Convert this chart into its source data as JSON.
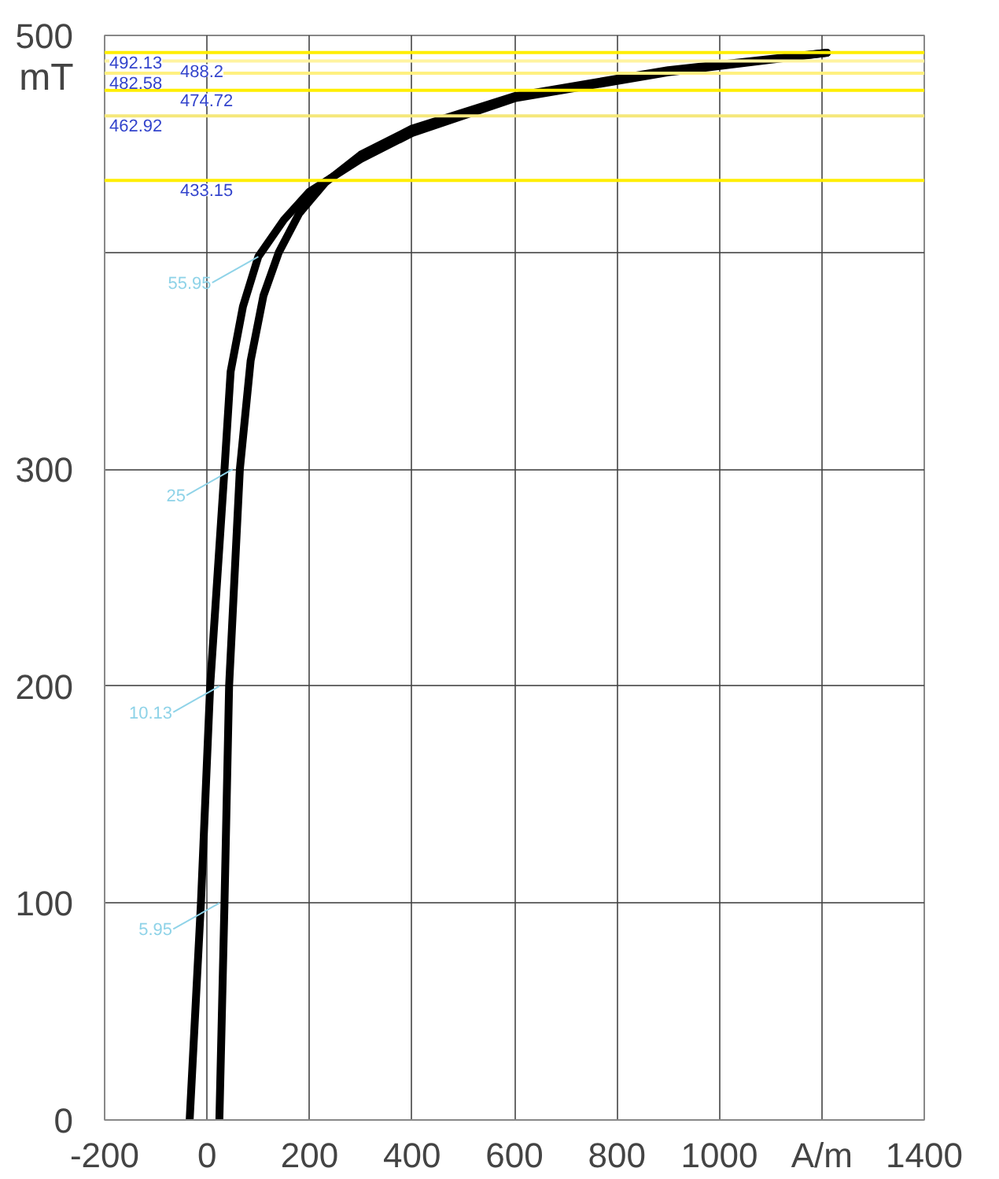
{
  "chart_data": {
    "type": "line",
    "ylabel": "mT",
    "series": [
      {
        "color": "#000000",
        "x": [
          1210,
          900,
          600,
          400,
          300,
          200,
          150,
          100,
          70,
          46,
          34,
          6,
          -12,
          -34
        ],
        "values": [
          492,
          483,
          471,
          455,
          443,
          428,
          415,
          398,
          375,
          345,
          300,
          200,
          100,
          0
        ]
      },
      {
        "color": "#000000",
        "x": [
          24,
          34,
          43,
          64,
          85,
          110,
          140,
          180,
          230,
          300,
          400,
          600,
          900,
          1210
        ],
        "values": [
          0,
          100,
          200,
          300,
          350,
          380,
          400,
          418,
          432,
          445,
          457,
          472,
          484,
          492
        ]
      }
    ],
    "xlim": [
      -200,
      1400
    ],
    "ylim": [
      0,
      500
    ],
    "xticks": [
      -200,
      0,
      200,
      400,
      600,
      800,
      1000,
      {
        "value": 1200,
        "label": "A/m"
      },
      1400
    ],
    "yticks": [
      0,
      100,
      200,
      300,
      {
        "value": 400,
        "label": null
      },
      500
    ],
    "grid": true,
    "line_style": "solid",
    "marker": "none",
    "ref_lines": [
      {
        "axis": "y",
        "value": 492.13,
        "label": "492.13",
        "color": "#ffee00"
      },
      {
        "axis": "y",
        "value": 488.2,
        "label": "488.2",
        "color": "#fff3a0"
      },
      {
        "axis": "y",
        "value": 482.58,
        "label": "482.58",
        "color": "#fff080"
      },
      {
        "axis": "y",
        "value": 474.72,
        "label": "474.72",
        "color": "#ffee00"
      },
      {
        "axis": "y",
        "value": 462.92,
        "label": "462.92",
        "color": "#f5e77a"
      },
      {
        "axis": "y",
        "value": 433.15,
        "label": "433.15",
        "color": "#ffee00"
      }
    ],
    "annotations": [
      {
        "text": "55.95",
        "x": 100,
        "y": 398
      },
      {
        "text": "25",
        "x": 50,
        "y": 300
      },
      {
        "text": "10.13",
        "x": 24,
        "y": 200
      },
      {
        "text": "5.95",
        "x": 24,
        "y": 100
      }
    ]
  }
}
